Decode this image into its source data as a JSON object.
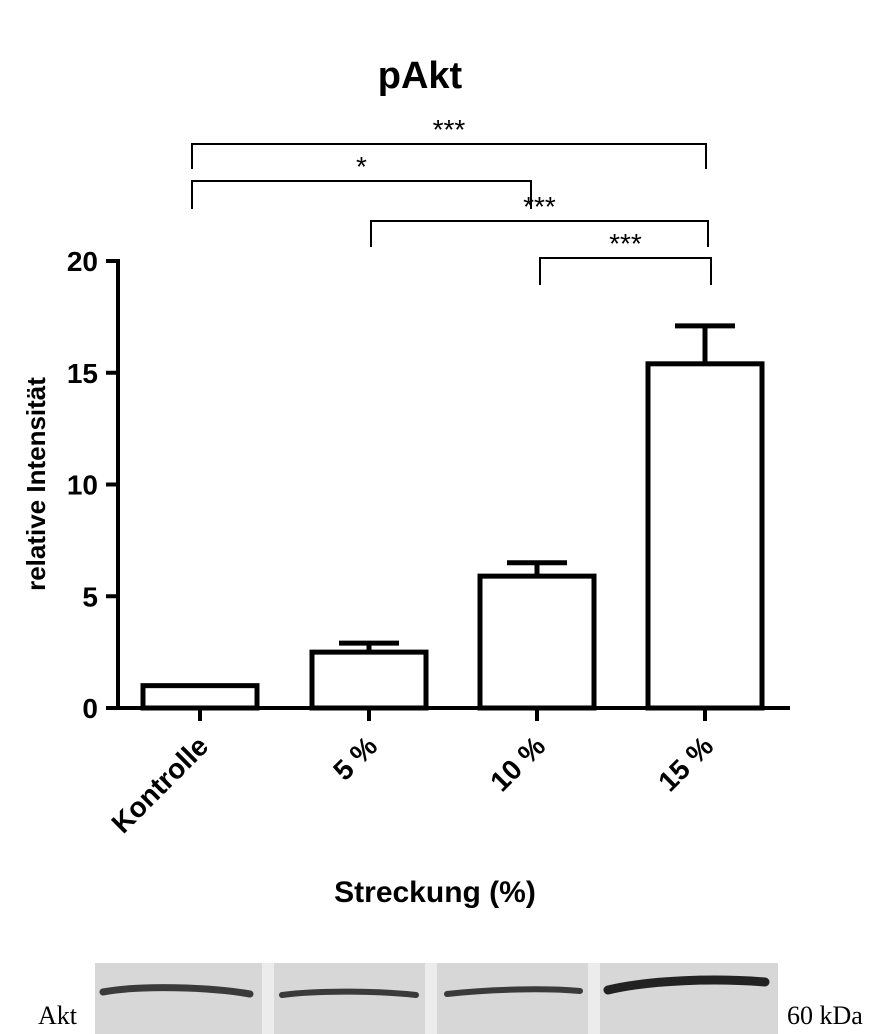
{
  "chart_data": {
    "type": "bar",
    "title": "pAkt",
    "xlabel": "Streckung (%)",
    "ylabel": "relative Intensität",
    "categories": [
      "Kontrolle",
      "5 %",
      "10 %",
      "15 %"
    ],
    "values": [
      1.0,
      2.5,
      5.9,
      15.4
    ],
    "errors": [
      0.0,
      0.4,
      0.6,
      1.7
    ],
    "ylim": [
      0,
      20
    ],
    "yticks": [
      0,
      5,
      10,
      15,
      20
    ],
    "grid": false,
    "significance": [
      {
        "from": 0,
        "to": 3,
        "label": "***"
      },
      {
        "from": 0,
        "to": 2,
        "label": "*"
      },
      {
        "from": 1,
        "to": 3,
        "label": "***"
      },
      {
        "from": 2,
        "to": 3,
        "label": "***"
      }
    ]
  },
  "blot": {
    "left_label": "Akt",
    "right_label": "60 kDa"
  }
}
